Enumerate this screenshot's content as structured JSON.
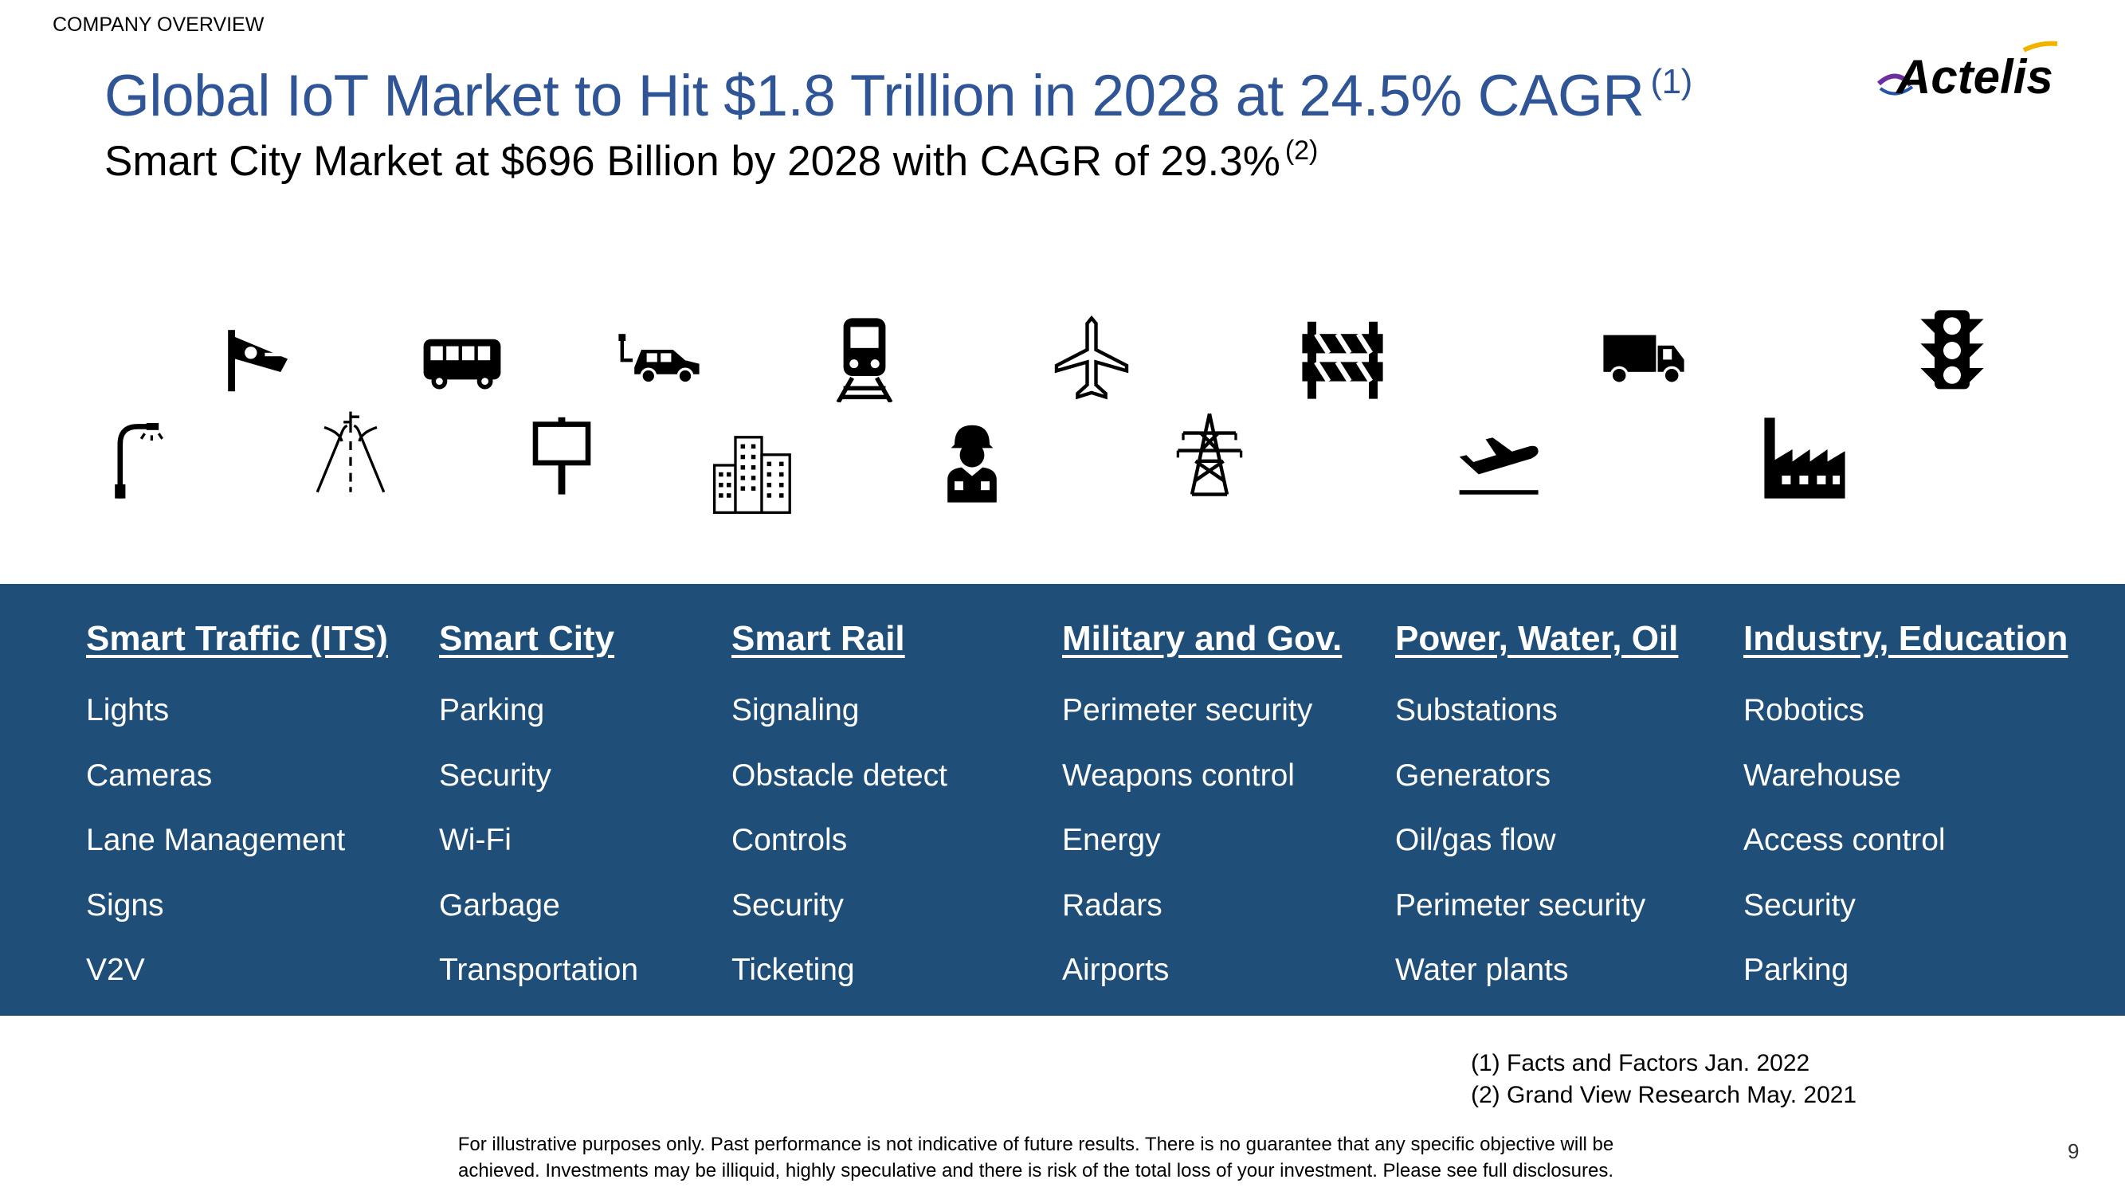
{
  "header": {
    "section_label": "COMPANY OVERVIEW",
    "title": "Global IoT Market to Hit $1.8 Trillion in 2028 at 24.5% CAGR",
    "title_ref": "(1)",
    "subtitle": "Smart City Market at $696 Billion by 2028 with CAGR of 29.3%",
    "subtitle_ref": "(2)",
    "logo_text": "Actelis"
  },
  "icons": {
    "top_row": [
      "surveillance-camera-icon",
      "bus-icon",
      "electric-car-icon",
      "train-icon",
      "airplane-icon",
      "road-barrier-icon",
      "truck-icon",
      "traffic-light-icon"
    ],
    "bottom_row": [
      "street-light-icon",
      "road-icon",
      "signpost-icon",
      "city-buildings-icon",
      "soldier-icon",
      "power-tower-icon",
      "plane-takeoff-icon",
      "factory-icon"
    ]
  },
  "columns": [
    {
      "heading": "Smart Traffic (ITS)",
      "items": [
        "Lights",
        "Cameras",
        "Lane Management",
        "Signs",
        "V2V"
      ]
    },
    {
      "heading": "Smart City",
      "items": [
        "Parking",
        "Security",
        "Wi-Fi",
        "Garbage",
        "Transportation"
      ]
    },
    {
      "heading": "Smart Rail",
      "items": [
        "Signaling",
        "Obstacle detect",
        "Controls",
        "Security",
        "Ticketing"
      ]
    },
    {
      "heading": "Military and Gov.",
      "items": [
        "Perimeter security",
        "Weapons control",
        "Energy",
        "Radars",
        "Airports"
      ]
    },
    {
      "heading": "Power, Water, Oil",
      "items": [
        "Substations",
        "Generators",
        "Oil/gas flow",
        "Perimeter security",
        "Water plants"
      ]
    },
    {
      "heading": "Industry, Education",
      "items": [
        "Robotics",
        "Warehouse",
        "Access control",
        "Security",
        "Parking"
      ]
    }
  ],
  "footnotes": [
    "(1) Facts and Factors Jan. 2022",
    "(2) Grand View Research May. 2021"
  ],
  "disclaimer": "For illustrative purposes only. Past performance is not indicative of future results.  There is no guarantee that any specific objective will be achieved.  Investments may be illiquid, highly speculative and there is risk of the total loss of your investment.  Please see full disclosures.",
  "page_number": "9",
  "colors": {
    "title": "#2f5597",
    "band": "#1f4e79",
    "band_text": "#ffffff"
  }
}
